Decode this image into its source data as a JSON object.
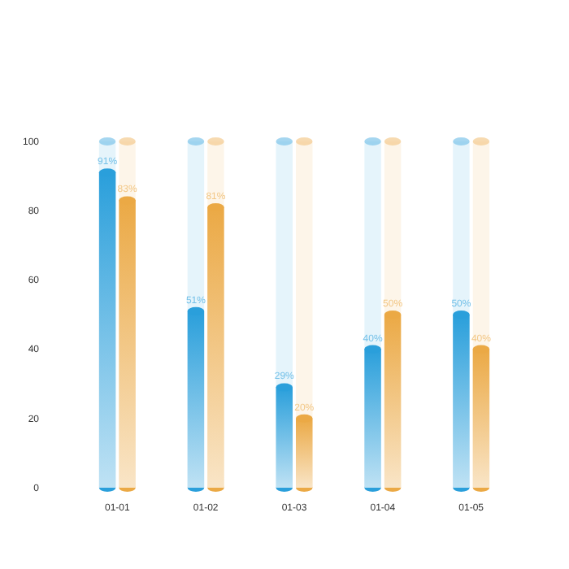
{
  "chart_data": {
    "type": "bar",
    "categories": [
      "01-01",
      "01-02",
      "01-03",
      "01-04",
      "01-05"
    ],
    "ylim": [
      0,
      100
    ],
    "yticks": [
      0,
      20,
      40,
      60,
      80,
      100
    ],
    "grid": false,
    "series": [
      {
        "color": "#2a9fdb",
        "values": [
          91,
          51,
          29,
          40,
          50
        ],
        "value_labels": [
          "91%",
          "51%",
          "29%",
          "40%",
          "50%"
        ]
      },
      {
        "color": "#eba945",
        "values": [
          83,
          81,
          20,
          50,
          40
        ],
        "value_labels": [
          "83%",
          "81%",
          "20%",
          "50%",
          "40%"
        ]
      }
    ]
  }
}
